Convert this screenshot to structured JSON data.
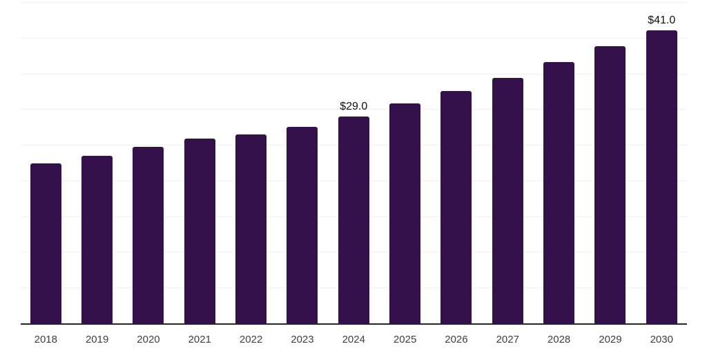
{
  "chart_data": {
    "type": "bar",
    "title": "",
    "xlabel": "",
    "ylabel": "",
    "categories": [
      "2018",
      "2019",
      "2020",
      "2021",
      "2022",
      "2023",
      "2024",
      "2025",
      "2026",
      "2027",
      "2028",
      "2029",
      "2030"
    ],
    "values": [
      22.4,
      23.5,
      24.7,
      25.9,
      26.5,
      27.5,
      29.0,
      30.8,
      32.5,
      34.4,
      36.6,
      38.8,
      41.0
    ],
    "labeled_points": [
      {
        "category": "2024",
        "label": "$29.0"
      },
      {
        "category": "2030",
        "label": "$41.0"
      }
    ],
    "ylim": [
      0,
      45
    ],
    "gridline_step": 5,
    "grid": "horizontal",
    "y_tick_labels_shown": false,
    "legend_position": "none",
    "colors": {
      "bar": "#35114B",
      "axis_line": "#262626",
      "gridline": "#f2f2f2",
      "tick_label": "#3e3e3e",
      "data_label": "#111111",
      "background": "#ffffff"
    }
  }
}
